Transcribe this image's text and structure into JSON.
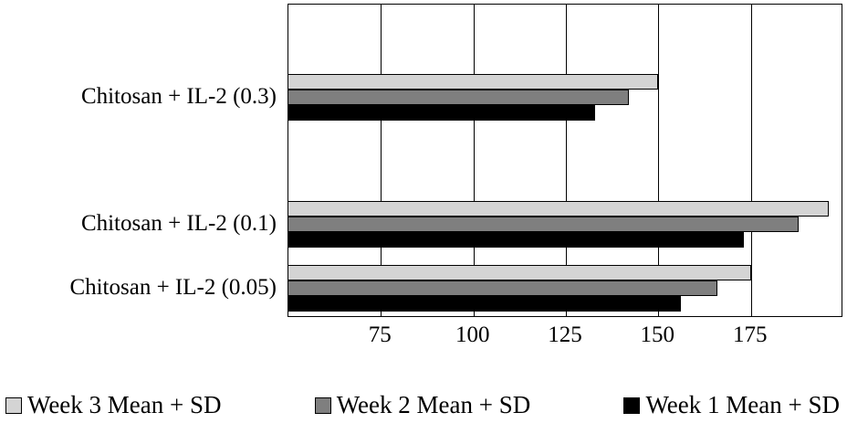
{
  "chart_data": {
    "type": "bar",
    "orientation": "horizontal",
    "title": "",
    "xlabel": "",
    "ylabel": "",
    "categories": [
      "Chitosan + IL-2 (0.3)",
      "Chitosan + IL-2 (0.1)",
      "Chitosan + IL-2 (0.05)"
    ],
    "series": [
      {
        "name": "Week 3 Mean + SD",
        "color": "#d4d4d4",
        "values": [
          150,
          196,
          175
        ]
      },
      {
        "name": "Week 2 Mean + SD",
        "color": "#7f7f7f",
        "values": [
          142,
          188,
          166
        ]
      },
      {
        "name": "Week 1 Mean + SD",
        "color": "#000000",
        "values": [
          133,
          173,
          156
        ]
      }
    ],
    "xlim": [
      50,
      200
    ],
    "xticks": [
      75,
      100,
      125,
      150,
      175
    ],
    "grid": "vertical",
    "legend_position": "bottom",
    "legend": [
      "Week 3 Mean + SD",
      "Week 2 Mean + SD",
      "Week 1 Mean + SD"
    ]
  },
  "colors": {
    "background": "#ffffff",
    "axis": "#000000",
    "gridline": "#000000"
  }
}
